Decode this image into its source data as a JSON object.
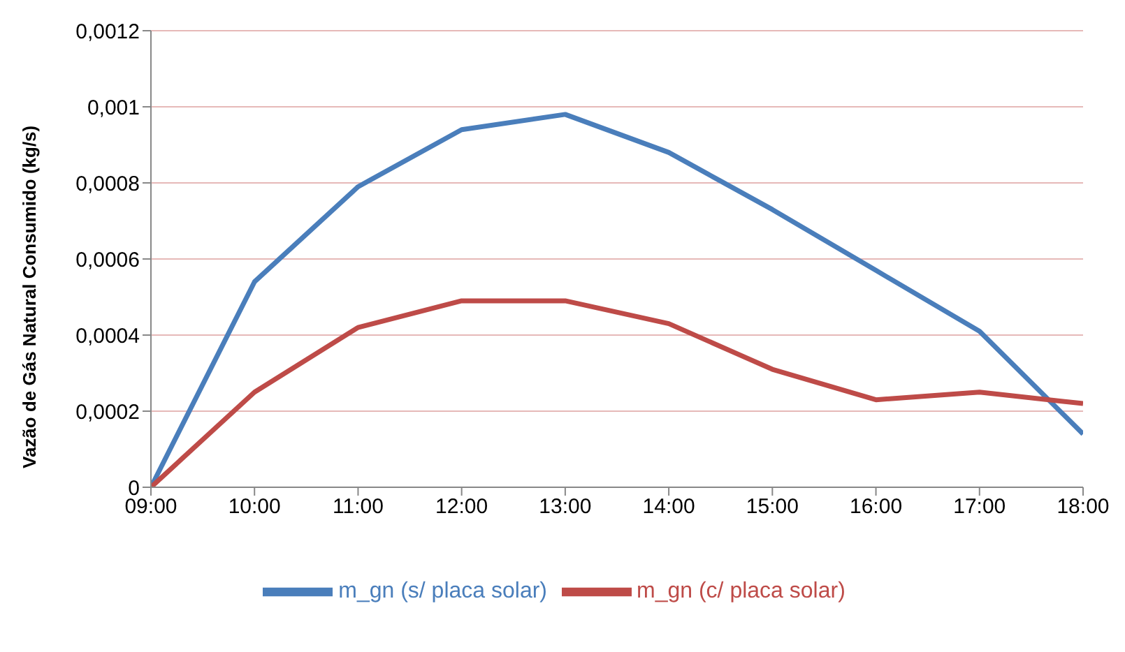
{
  "chart_data": {
    "type": "line",
    "ylabel": "Vazão de Gás Natural Consumido (kg/s)",
    "categories": [
      "09:00",
      "10:00",
      "11:00",
      "12:00",
      "13:00",
      "14:00",
      "15:00",
      "16:00",
      "17:00",
      "18:00"
    ],
    "series": [
      {
        "name": "m_gn (s/ placa solar)",
        "color": "#4a7ebb",
        "values": [
          0,
          0.00054,
          0.00079,
          0.00094,
          0.00098,
          0.00088,
          0.00073,
          0.00057,
          0.00041,
          0.00014
        ]
      },
      {
        "name": "m_gn (c/ placa solar)",
        "color": "#be4b48",
        "values": [
          0,
          0.00025,
          0.00042,
          0.00049,
          0.00049,
          0.00043,
          0.00031,
          0.00023,
          0.00025,
          0.00022
        ]
      }
    ],
    "ylim": [
      0,
      0.0012
    ],
    "yticks": [
      0,
      {
        "value": 0.0002,
        "label": "0,0002"
      },
      {
        "value": 0.0004,
        "label": "0,0004"
      },
      {
        "value": 0.0006,
        "label": "0,0006"
      },
      {
        "value": 0.0008,
        "label": "0,0008"
      },
      {
        "value": 0.001,
        "label": "0,001"
      },
      {
        "value": 0.0012,
        "label": "0,0012"
      }
    ],
    "grid": "y",
    "legend": "bottom",
    "marker": "none",
    "line_style": "solid"
  }
}
